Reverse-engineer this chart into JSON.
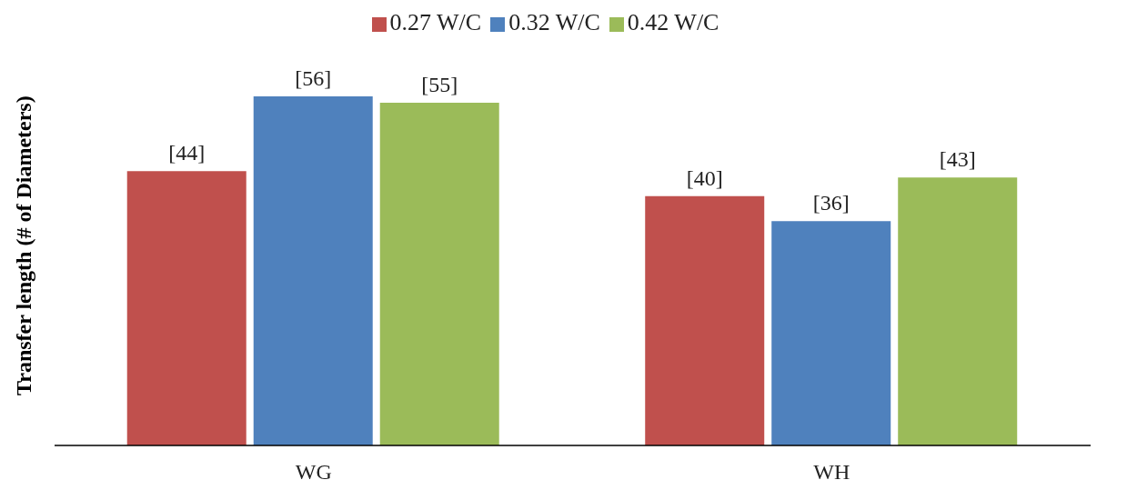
{
  "chart_data": {
    "type": "bar",
    "ylabel": "Transfer length (# of Diameters)",
    "categories": [
      "WG",
      "WH"
    ],
    "series": [
      {
        "name": "0.27 W/C",
        "color": "#c0504d",
        "values": [
          44,
          40
        ],
        "value_labels": [
          "[44]",
          "[40]"
        ]
      },
      {
        "name": "0.32 W/C",
        "color": "#4f81bd",
        "values": [
          56,
          36
        ],
        "value_labels": [
          "[56]",
          "[36]"
        ]
      },
      {
        "name": "0.42 W/C",
        "color": "#9bbb59",
        "values": [
          55,
          43
        ],
        "value_labels": [
          "[55]",
          "[43]"
        ]
      }
    ],
    "legend": "top",
    "grid": false
  }
}
